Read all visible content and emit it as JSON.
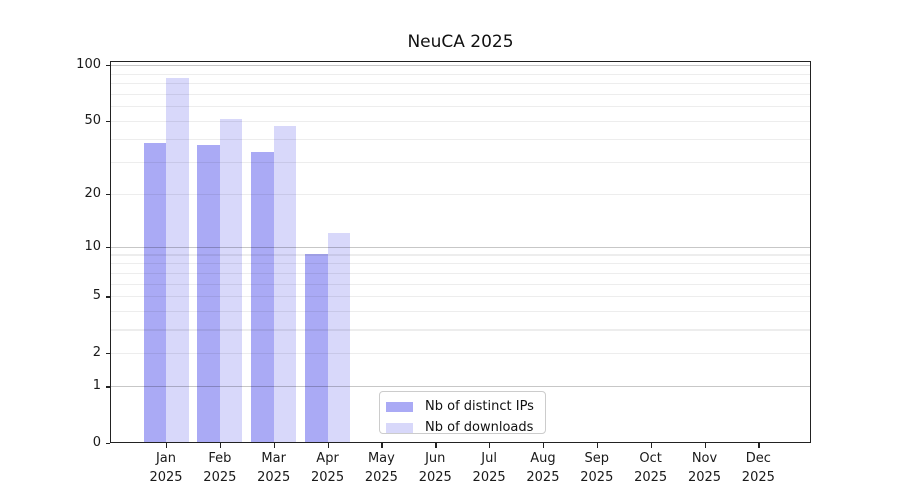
{
  "chart_data": {
    "type": "bar",
    "title": "NeuCA 2025",
    "categories": [
      "Jan",
      "Feb",
      "Mar",
      "Apr",
      "May",
      "Jun",
      "Jul",
      "Aug",
      "Sep",
      "Oct",
      "Nov",
      "Dec"
    ],
    "category_year": "2025",
    "series": [
      {
        "name": "Nb of distinct IPs",
        "color": "#aaaaf5",
        "values": [
          38,
          37,
          34,
          9,
          0,
          0,
          0,
          0,
          0,
          0,
          0,
          0
        ]
      },
      {
        "name": "Nb of downloads",
        "color": "#d8d8fa",
        "values": [
          85,
          51,
          47,
          12,
          0,
          0,
          0,
          0,
          0,
          0,
          0,
          0
        ]
      }
    ],
    "yscale": "log1p",
    "ylim": [
      0,
      100
    ],
    "yticks": [
      0,
      1,
      2,
      5,
      10,
      20,
      50,
      100
    ],
    "grid": {
      "minor": [
        2,
        3,
        4,
        5,
        6,
        7,
        8,
        9,
        20,
        30,
        40,
        50,
        60,
        70,
        80,
        90
      ],
      "major": [
        1,
        10,
        100
      ],
      "minor_color": "#00000012",
      "major_color": "#00000038",
      "grid_above_bars": true
    },
    "legend": {
      "position": "lower-center",
      "border_color": "#cccccc",
      "background": "#ffffffcc"
    },
    "axis_color": "#222222",
    "text_color": "#1a1a1a"
  }
}
